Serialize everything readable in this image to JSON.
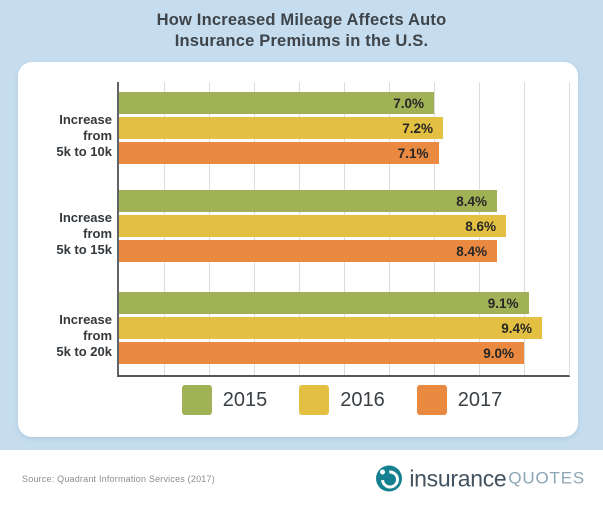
{
  "title": {
    "line1": "How Increased Mileage Affects Auto",
    "line2": "Insurance Premiums in the U.S."
  },
  "chart_data": {
    "type": "bar",
    "orientation": "horizontal",
    "title": "How Increased Mileage Affects Auto Insurance Premiums in the U.S.",
    "categories": [
      "Increase from 5k to 10k",
      "Increase from 5k to 15k",
      "Increase from 5k to 20k"
    ],
    "category_lines": [
      [
        "Increase from",
        "5k to 10k"
      ],
      [
        "Increase from",
        "5k to 15k"
      ],
      [
        "Increase from",
        "5k to 20k"
      ]
    ],
    "series": [
      {
        "name": "2015",
        "color": "#a1b256",
        "values": [
          7.0,
          8.4,
          9.1
        ],
        "labels": [
          "7.0%",
          "8.4%",
          "9.1%"
        ]
      },
      {
        "name": "2016",
        "color": "#e3c042",
        "values": [
          7.2,
          8.6,
          9.4
        ],
        "labels": [
          "7.2%",
          "8.6%",
          "9.4%"
        ]
      },
      {
        "name": "2017",
        "color": "#e98a40",
        "values": [
          7.1,
          8.4,
          9.0
        ],
        "labels": [
          "7.1%",
          "8.4%",
          "9.0%"
        ]
      }
    ],
    "xlim": [
      0,
      10
    ],
    "gridline_step": 1,
    "grid": true,
    "legend_position": "bottom",
    "value_label_suffix": "%"
  },
  "footer": {
    "source": "Source: Quadrant Information Services (2017)",
    "brand": {
      "part1": "insurance",
      "part2": "quotes"
    }
  },
  "colors": {
    "background": "#c5ddee",
    "panel": "#ffffff",
    "axis": "#5f6468",
    "gridline": "#dcdcdc",
    "title_text": "#3e4449",
    "brand_teal": "#15808f"
  }
}
